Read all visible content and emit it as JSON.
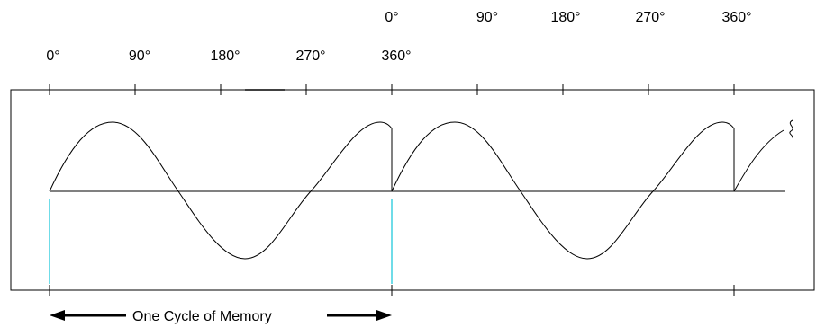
{
  "labels": {
    "second_cycle_degrees": [
      "0°",
      "90°",
      "180°",
      "270°",
      "360°"
    ],
    "first_cycle_degrees": [
      "0°",
      "90°",
      "180°",
      "270°",
      "360°"
    ],
    "caption": "One Cycle of Memory"
  },
  "colors": {
    "stroke": "#000000",
    "marker": "#3fd0e0",
    "background": "#ffffff"
  },
  "icons": {
    "caption_left": "arrow-left-icon",
    "caption_right": "arrow-right-icon",
    "tail": "squiggle-break-icon"
  }
}
